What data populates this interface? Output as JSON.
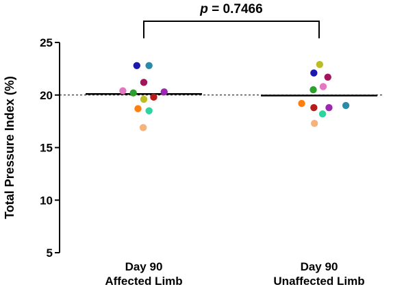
{
  "chart_data": {
    "type": "scatter",
    "ylabel": "Total Pressure Index (%)",
    "ylim": [
      5,
      25
    ],
    "yticks": [
      5,
      10,
      15,
      20,
      25
    ],
    "reference_line": 20,
    "categories": [
      {
        "line1": "Day 90",
        "line2": "Affected Limb"
      },
      {
        "line1": "Day 90",
        "line2": "Unaffected Limb"
      }
    ],
    "annotation": {
      "p_symbol": "p",
      "p_text": " = 0.7466"
    },
    "groups": [
      {
        "mean": 20.1,
        "points": [
          {
            "y": 22.8,
            "color": "#1a1ab0",
            "offset": -0.6
          },
          {
            "y": 22.8,
            "color": "#2a8aa8",
            "offset": 0.45
          },
          {
            "y": 21.2,
            "color": "#a3155a",
            "offset": 0.0
          },
          {
            "y": 20.4,
            "color": "#e377c2",
            "offset": -1.8
          },
          {
            "y": 20.2,
            "color": "#2ca02c",
            "offset": -0.9
          },
          {
            "y": 20.3,
            "color": "#9c27b0",
            "offset": 1.75
          },
          {
            "y": 19.8,
            "color": "#b71c1c",
            "offset": 0.85
          },
          {
            "y": 19.6,
            "color": "#bcbd22",
            "offset": 0.0
          },
          {
            "y": 18.7,
            "color": "#ff7f0e",
            "offset": -0.5
          },
          {
            "y": 18.5,
            "color": "#2dd4a0",
            "offset": 0.45
          },
          {
            "y": 16.9,
            "color": "#f5b27a",
            "offset": -0.05
          }
        ]
      },
      {
        "mean": 19.95,
        "points": [
          {
            "y": 22.9,
            "color": "#bcbd22",
            "offset": 0.05
          },
          {
            "y": 22.1,
            "color": "#1a1ab0",
            "offset": -0.45
          },
          {
            "y": 21.7,
            "color": "#a3155a",
            "offset": 0.75
          },
          {
            "y": 20.8,
            "color": "#e377c2",
            "offset": 0.35
          },
          {
            "y": 20.5,
            "color": "#2ca02c",
            "offset": -0.5
          },
          {
            "y": 19.2,
            "color": "#ff7f0e",
            "offset": -1.5
          },
          {
            "y": 19.0,
            "color": "#2a8aa8",
            "offset": 2.3
          },
          {
            "y": 18.8,
            "color": "#b71c1c",
            "offset": -0.45
          },
          {
            "y": 18.8,
            "color": "#9c27b0",
            "offset": 0.85
          },
          {
            "y": 18.2,
            "color": "#2dd4a0",
            "offset": 0.3
          },
          {
            "y": 17.3,
            "color": "#f5b27a",
            "offset": -0.4
          }
        ]
      }
    ]
  }
}
